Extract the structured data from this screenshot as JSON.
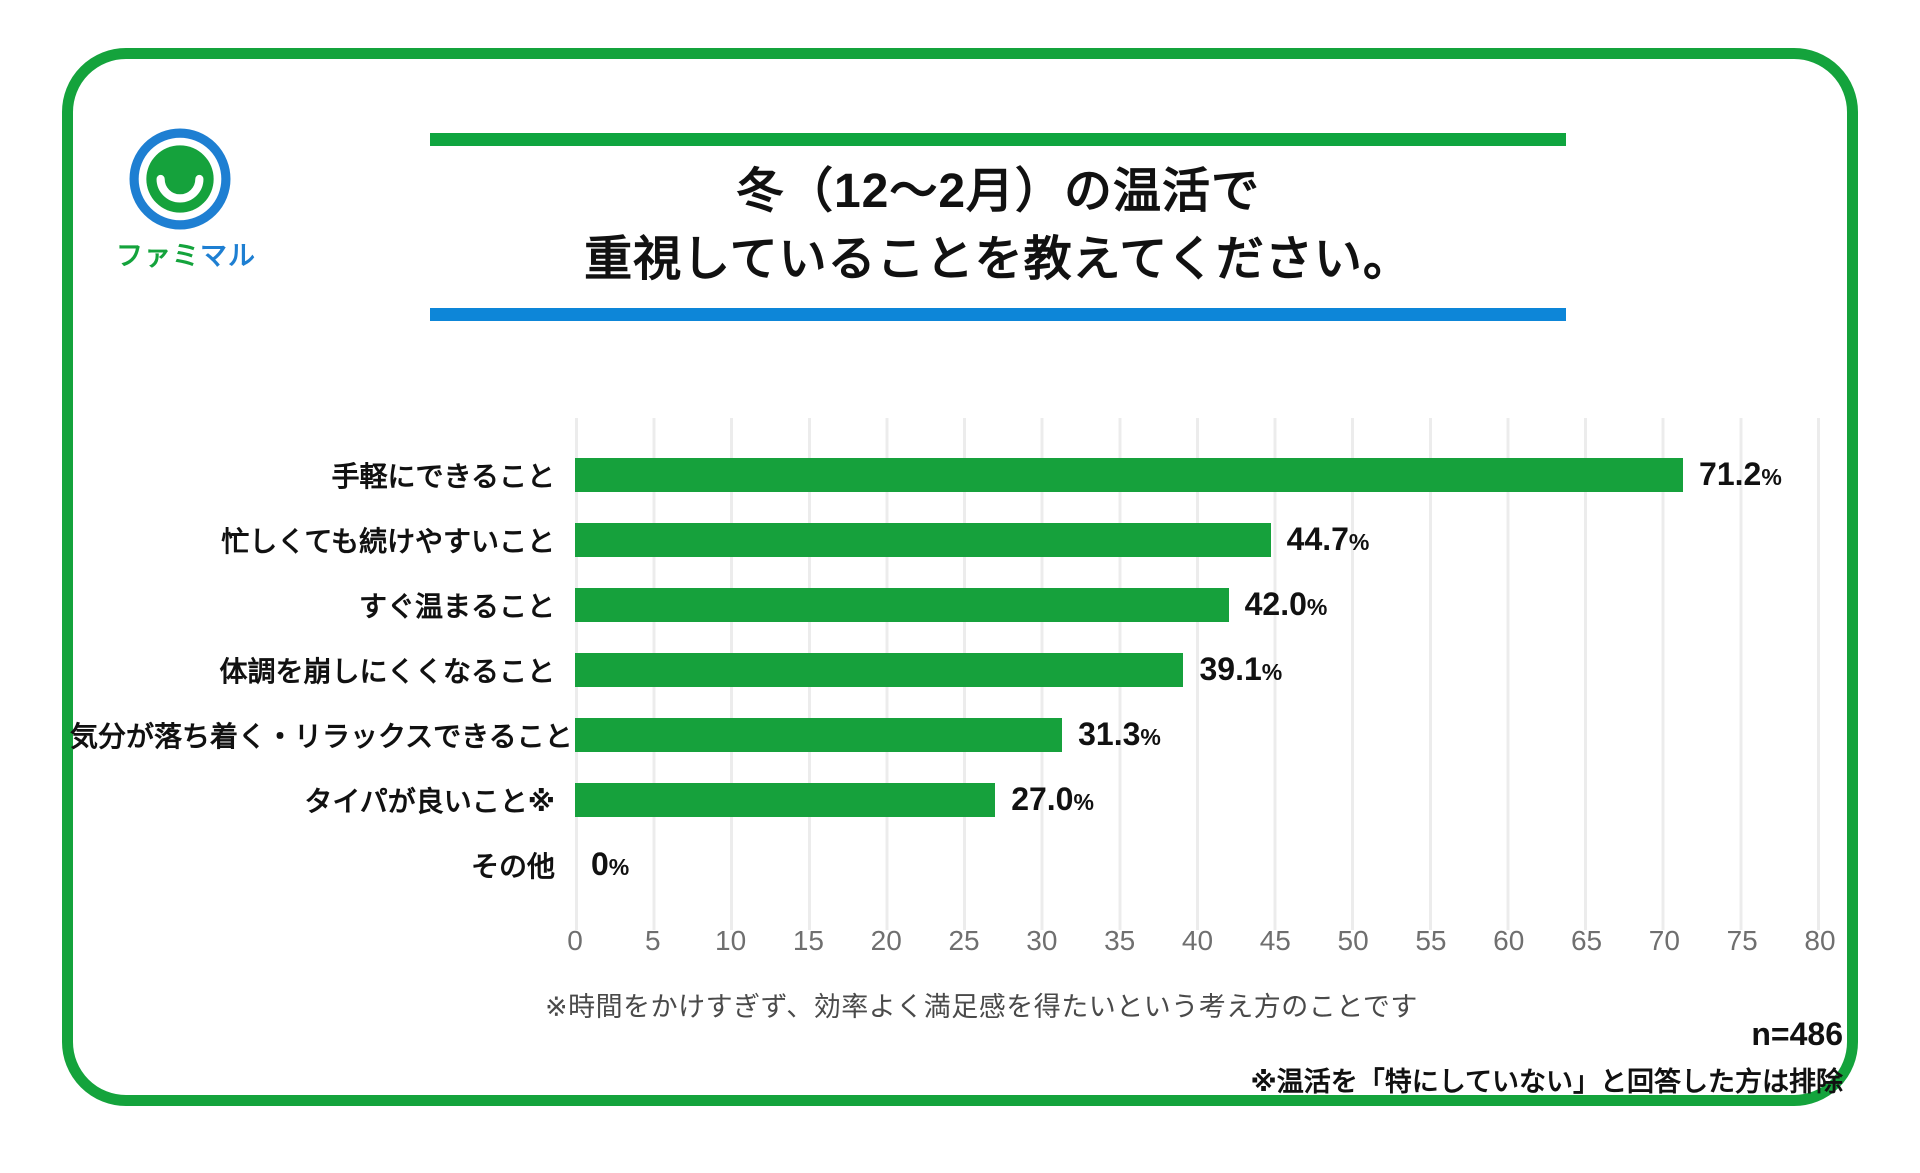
{
  "logo": {
    "brand_green_part": "ファミ",
    "brand_blue_part": "マル"
  },
  "title": {
    "line1": "冬（12〜2月）の温活で",
    "line2": "重視していることを教えてください。"
  },
  "chart_data": {
    "type": "bar",
    "orientation": "horizontal",
    "title": "冬（12〜2月）の温活で重視していることを教えてください。",
    "categories": [
      "手軽にできること",
      "忙しくても続けやすいこと",
      "すぐ温まること",
      "体調を崩しにくくなること",
      "気分が落ち着く・リラックスできること",
      "タイパが良いこと※",
      "その他"
    ],
    "values": [
      71.2,
      44.7,
      42.0,
      39.1,
      31.3,
      27.0,
      0
    ],
    "value_labels": [
      "71.2%",
      "44.7%",
      "42.0%",
      "39.1%",
      "31.3%",
      "27.0%",
      "0%"
    ],
    "xlim": [
      0,
      80
    ],
    "x_ticks": [
      0,
      5,
      10,
      15,
      20,
      25,
      30,
      35,
      40,
      45,
      50,
      55,
      60,
      65,
      70,
      75,
      80
    ],
    "grid": true,
    "legend": "none",
    "bar_color": "#16a13c"
  },
  "footnotes": {
    "taipa_note": "※時間をかけすぎず、効率よく満足感を得たいという考え方のことです",
    "sample_size": "n=486",
    "exclusion_note": "※温活を「特にしていない」と回答した方は排除"
  },
  "colors": {
    "frame_green": "#14a33c",
    "title_rule_green": "#0fa53f",
    "title_rule_blue": "#0d86d8",
    "bar_green": "#16a13c",
    "logo_ring_blue": "#1e7fd2",
    "logo_face_green": "#15a23c"
  }
}
